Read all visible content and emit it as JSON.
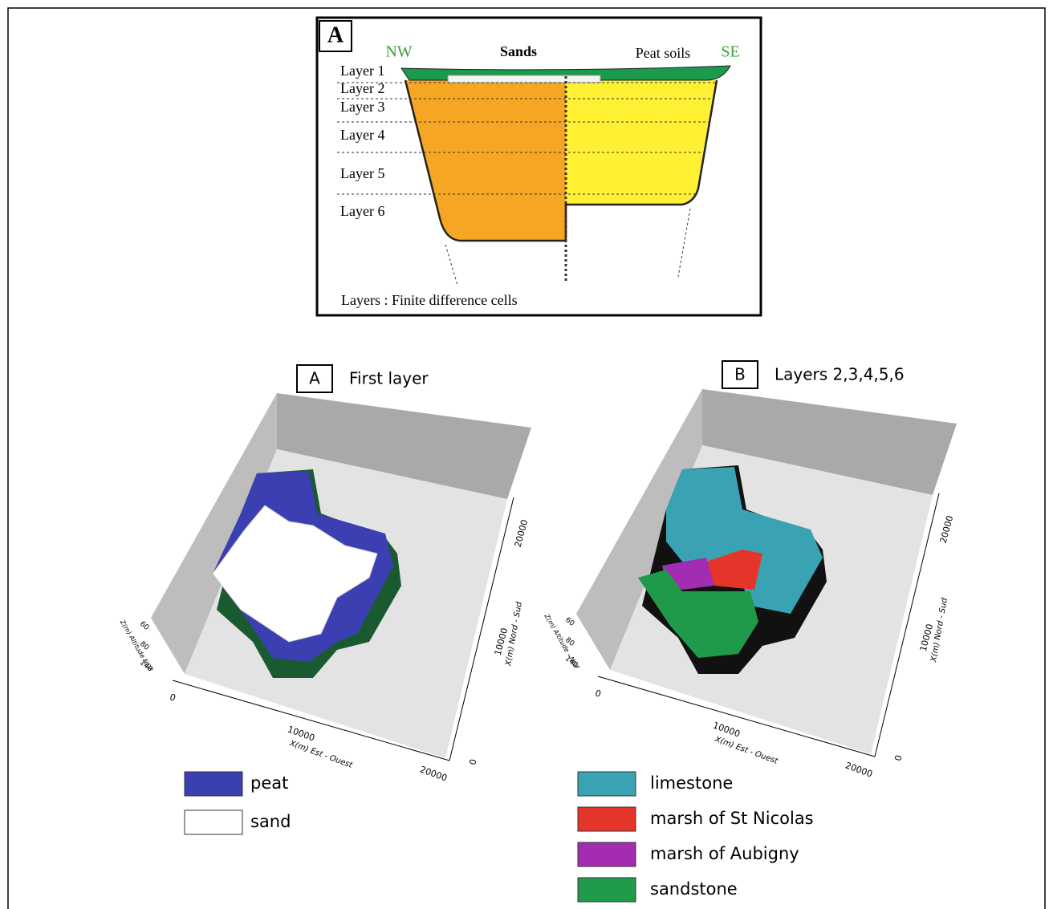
{
  "section": {
    "label": "A",
    "nw": "NW",
    "se": "SE",
    "sands": "Sands",
    "peat_soils": "Peat soils",
    "layers": [
      "Layer 1",
      "Layer 2",
      "Layer 3",
      "Layer 4",
      "Layer 5",
      "Layer 6"
    ],
    "caption": "Layers : Finite difference cells"
  },
  "panels": [
    {
      "label": "A",
      "title": "First layer",
      "x_axis_label": "X(m) Est - Ouest",
      "y_axis_label": "X(m) Nord - Sud",
      "z_axis_label": "Z(m) Altitude NGF",
      "x_ticks": [
        "0",
        "10000",
        "20000"
      ],
      "y_ticks": [
        "0",
        "10000",
        "20000"
      ],
      "z_ticks": [
        "60",
        "80",
        "140"
      ],
      "legend": [
        {
          "label": "peat",
          "color": "#3b3fb2"
        },
        {
          "label": "sand",
          "color": "#ffffff"
        }
      ]
    },
    {
      "label": "B",
      "title": "Layers 2,3,4,5,6",
      "x_axis_label": "X(m) Est - Ouest",
      "y_axis_label": "X(m) Nord - Sud",
      "z_axis_label": "Z(m) Altitude - NGF",
      "x_ticks": [
        "0",
        "10000",
        "20000"
      ],
      "y_ticks": [
        "0",
        "10000",
        "20000"
      ],
      "z_ticks": [
        "60",
        "80",
        "140"
      ],
      "legend": [
        {
          "label": "limestone",
          "color": "#3aa3b3"
        },
        {
          "label": "marsh of St Nicolas",
          "color": "#e5352b"
        },
        {
          "label": "marsh of Aubigny",
          "color": "#a22db2"
        },
        {
          "label": "sandstone",
          "color": "#1f9a4a"
        }
      ]
    }
  ]
}
